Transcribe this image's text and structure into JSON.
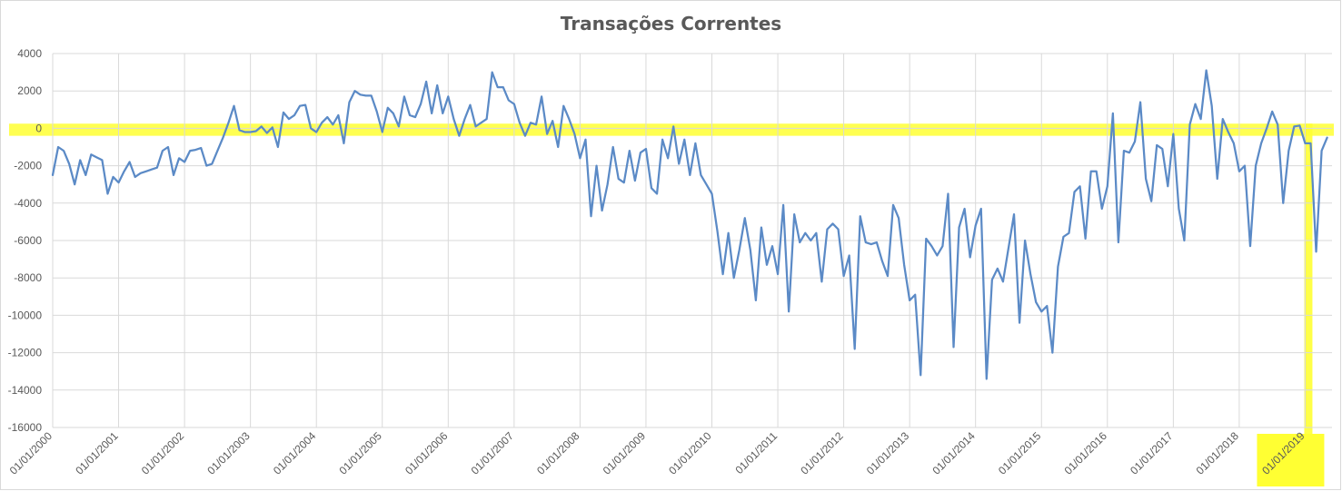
{
  "chart_data": {
    "type": "line",
    "title": "Transações Correntes",
    "xlabel": "",
    "ylabel": "",
    "ylim": [
      -16000,
      4000
    ],
    "y_ticks": [
      4000,
      2000,
      0,
      -2000,
      -4000,
      -6000,
      -8000,
      -10000,
      -12000,
      -14000,
      -16000
    ],
    "x_tick_labels": [
      "01/01/2000",
      "01/01/2001",
      "01/01/2002",
      "01/01/2003",
      "01/01/2004",
      "01/01/2005",
      "01/01/2006",
      "01/01/2007",
      "01/01/2008",
      "01/01/2009",
      "01/01/2010",
      "01/01/2011",
      "01/01/2012",
      "01/01/2013",
      "01/01/2014",
      "01/01/2015",
      "01/01/2016",
      "01/01/2017",
      "01/01/2018",
      "01/01/2019"
    ],
    "x_start": "01/01/2000",
    "x_frequency": "monthly",
    "grid": true,
    "legend": "none",
    "colors": {
      "line": "#5b8ac6",
      "highlight": "#ffff33",
      "grid": "#d9d9d9",
      "text": "#595959"
    },
    "highlights": [
      {
        "kind": "horizontal-band",
        "y_range": [
          -400,
          250
        ]
      },
      {
        "kind": "vertical-band",
        "x": "01/01/2019",
        "y_range": [
          -16000,
          250
        ]
      },
      {
        "kind": "tick-label-box",
        "label": "01/01/2019"
      }
    ],
    "values": [
      -2500,
      -1000,
      -1200,
      -1900,
      -3000,
      -1700,
      -2500,
      -1400,
      -1550,
      -1700,
      -3500,
      -2600,
      -2900,
      -2300,
      -1800,
      -2600,
      -2400,
      -2300,
      -2200,
      -2100,
      -1200,
      -1000,
      -2500,
      -1600,
      -1800,
      -1200,
      -1150,
      -1050,
      -2000,
      -1900,
      -1200,
      -500,
      300,
      1200,
      -100,
      -200,
      -200,
      -150,
      100,
      -250,
      50,
      -1000,
      850,
      500,
      700,
      1200,
      1250,
      0,
      -200,
      300,
      600,
      200,
      700,
      -800,
      1400,
      2000,
      1800,
      1750,
      1750,
      900,
      -200,
      1100,
      800,
      100,
      1700,
      700,
      600,
      1300,
      2500,
      800,
      2300,
      800,
      1700,
      500,
      -400,
      500,
      1250,
      100,
      300,
      500,
      3000,
      2200,
      2200,
      1500,
      1300,
      300,
      -400,
      300,
      200,
      1700,
      -300,
      400,
      -1000,
      1200,
      500,
      -300,
      -1600,
      -600,
      -4700,
      -2000,
      -4400,
      -3000,
      -1000,
      -2700,
      -2900,
      -1200,
      -2800,
      -1300,
      -1100,
      -3200,
      -3500,
      -600,
      -1600,
      100,
      -1900,
      -600,
      -2500,
      -800,
      -2500,
      -3000,
      -3500,
      -5500,
      -7800,
      -5600,
      -8000,
      -6500,
      -4800,
      -6500,
      -9200,
      -5300,
      -7300,
      -6300,
      -7800,
      -4100,
      -9800,
      -4600,
      -6100,
      -5600,
      -6000,
      -5600,
      -8200,
      -5400,
      -5100,
      -5400,
      -7900,
      -6800,
      -11800,
      -4700,
      -6100,
      -6200,
      -6100,
      -7100,
      -7900,
      -4100,
      -4800,
      -7300,
      -9200,
      -8900,
      -13200,
      -5900,
      -6300,
      -6800,
      -6300,
      -3500,
      -11700,
      -5300,
      -4300,
      -6900,
      -5200,
      -4300,
      -13400,
      -8100,
      -7500,
      -8200,
      -6400,
      -4600,
      -10400,
      -6000,
      -7800,
      -9300,
      -9800,
      -9500,
      -12000,
      -7400,
      -5800,
      -5600,
      -3400,
      -3100,
      -5900,
      -2300,
      -2300,
      -4300,
      -3100,
      800,
      -6100,
      -1200,
      -1300,
      -700,
      1400,
      -2700,
      -3900,
      -900,
      -1100,
      -3100,
      -300,
      -4300,
      -6000,
      200,
      1300,
      500,
      3100,
      1200,
      -2700,
      500,
      -200,
      -800,
      -2300,
      -2000,
      -6300,
      -2000,
      -800,
      0,
      900,
      200,
      -4000,
      -1200,
      100,
      150,
      -800,
      -800,
      -6600,
      -1200,
      -500
    ]
  }
}
